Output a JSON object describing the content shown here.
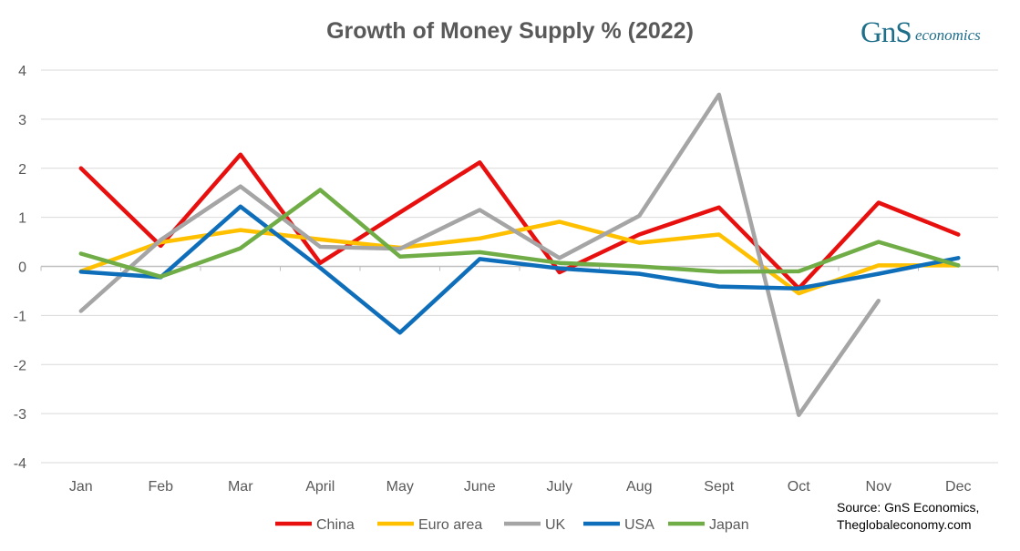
{
  "logo": {
    "brand": "GnS",
    "suffix": "economics"
  },
  "source": {
    "line1": "Source: GnS Economics,",
    "line2": "Theglobaleconomy.com"
  },
  "chart_data": {
    "type": "line",
    "title": "Growth of Money Supply % (2022)",
    "xlabel": "",
    "ylabel": "",
    "ylim": [
      -4,
      4
    ],
    "yticks": [
      4,
      3,
      2,
      1,
      0,
      -1,
      -2,
      -3,
      -4
    ],
    "ytick_labels": [
      "4",
      "3",
      "2",
      "1",
      "0",
      "-1",
      "-2",
      "-3",
      "-4"
    ],
    "grid": true,
    "legend_position": "bottom",
    "categories": [
      "Jan",
      "Feb",
      "Mar",
      "April",
      "May",
      "June",
      "July",
      "Aug",
      "Sept",
      "Oct",
      "Nov",
      "Dec"
    ],
    "series": [
      {
        "name": "China",
        "color": "#e8100f",
        "values": [
          2.0,
          0.42,
          2.28,
          0.07,
          1.1,
          2.12,
          -0.12,
          0.65,
          1.2,
          -0.45,
          1.3,
          0.65
        ]
      },
      {
        "name": "Euro area",
        "color": "#ffc000",
        "values": [
          -0.1,
          0.49,
          0.74,
          0.55,
          0.38,
          0.57,
          0.91,
          0.48,
          0.65,
          -0.55,
          0.02,
          0.02
        ]
      },
      {
        "name": "UK",
        "color": "#a5a5a5",
        "values": [
          -0.91,
          0.54,
          1.63,
          0.4,
          0.36,
          1.15,
          0.17,
          1.03,
          3.5,
          -3.03,
          -0.7,
          null
        ]
      },
      {
        "name": "USA",
        "color": "#0f6eba",
        "values": [
          -0.11,
          -0.22,
          1.22,
          -0.03,
          -1.35,
          0.15,
          -0.04,
          -0.15,
          -0.41,
          -0.45,
          -0.15,
          0.17
        ]
      },
      {
        "name": "Japan",
        "color": "#70ad47",
        "values": [
          0.26,
          -0.21,
          0.37,
          1.56,
          0.2,
          0.29,
          0.07,
          0.0,
          -0.11,
          -0.1,
          0.5,
          0.02
        ]
      }
    ]
  }
}
